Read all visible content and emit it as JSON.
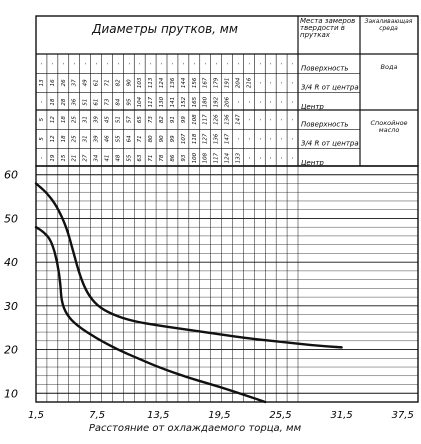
{
  "header": {
    "title": "Диаметры прутков, мм",
    "col_label_1": "Места замеров твердости в прутках",
    "col_label_2": "Закаливающая среда"
  },
  "row_groups": [
    {
      "medium": "Вода",
      "rows": [
        {
          "label": "Поверхность",
          "cells": [
            "-",
            "-",
            "-",
            "-",
            "-",
            "-",
            "-",
            "-",
            "-",
            "-",
            "-",
            "-",
            "-",
            "-",
            "-",
            "-",
            "-",
            "-",
            "-",
            "-",
            "-",
            "-",
            "-",
            "-"
          ]
        },
        {
          "label": "3/4 R от центра",
          "cells": [
            "13",
            "16",
            "26",
            "37",
            "49",
            "61",
            "71",
            "82",
            "90",
            "103",
            "113",
            "124",
            "136",
            "144",
            "156",
            "167",
            "179",
            "191",
            "204",
            "216",
            "-",
            "-",
            "-",
            "-"
          ]
        },
        {
          "label": "Центр",
          "cells": [
            "-",
            "18",
            "28",
            "36",
            "51",
            "61",
            "73",
            "84",
            "95",
            "104",
            "117",
            "130",
            "141",
            "152",
            "165",
            "180",
            "192",
            "206",
            "-",
            "-",
            "-",
            "-",
            "-",
            "-"
          ]
        }
      ]
    },
    {
      "medium": "Спокойное масло",
      "rows": [
        {
          "label": "Поверхность",
          "cells": [
            "5",
            "12",
            "18",
            "25",
            "31",
            "39",
            "45",
            "51",
            "57",
            "65",
            "73",
            "82",
            "91",
            "99",
            "108",
            "117",
            "126",
            "136",
            "147",
            "-",
            "-",
            "-",
            "-",
            "-"
          ]
        },
        {
          "label": "3/4 R от центра",
          "cells": [
            "5",
            "12",
            "18",
            "25",
            "31",
            "39",
            "46",
            "55",
            "64",
            "71",
            "80",
            "90",
            "99",
            "107",
            "118",
            "127",
            "136",
            "147",
            "-",
            "-",
            "-",
            "-",
            "-",
            "-"
          ]
        },
        {
          "label": "Центр",
          "cells": [
            "-",
            "19",
            "15",
            "21",
            "27",
            "34",
            "41",
            "48",
            "55",
            "63",
            "71",
            "78",
            "86",
            "93",
            "100",
            "108",
            "117",
            "124",
            "133",
            "-",
            "-",
            "-",
            "-",
            "-"
          ]
        }
      ]
    }
  ],
  "chart_data": {
    "type": "line",
    "title": "",
    "xlabel": "Расстояние от охлаждаемого торца, мм",
    "ylabel": "",
    "xlim": [
      1.5,
      39
    ],
    "ylim": [
      8,
      62
    ],
    "xticks": [
      1.5,
      7.5,
      13.5,
      19.5,
      25.5,
      31.5,
      37.5
    ],
    "xtick_labels": [
      "1,5",
      "7,5",
      "13,5",
      "19,5",
      "25,5",
      "31,5",
      "37,5"
    ],
    "yticks": [
      10,
      20,
      30,
      40,
      50,
      60
    ],
    "series": [
      {
        "values": [
          [
            1.5,
            58
          ],
          [
            2.5,
            56
          ],
          [
            3.5,
            53
          ],
          [
            4.5,
            48
          ],
          [
            5.2,
            42
          ],
          [
            5.8,
            37
          ],
          [
            6.5,
            33
          ],
          [
            7.5,
            30
          ],
          [
            9,
            28
          ],
          [
            11,
            26.5
          ],
          [
            13.5,
            25.5
          ],
          [
            16.5,
            24.5
          ],
          [
            19.5,
            23.5
          ],
          [
            22.5,
            22.5
          ],
          [
            25.5,
            21.8
          ],
          [
            28.5,
            21
          ],
          [
            31.5,
            20.5
          ]
        ]
      },
      {
        "values": [
          [
            1.5,
            48
          ],
          [
            2.2,
            47
          ],
          [
            3,
            45
          ],
          [
            3.6,
            40
          ],
          [
            3.9,
            35
          ],
          [
            4,
            31
          ],
          [
            4.5,
            28
          ],
          [
            5.5,
            25.5
          ],
          [
            7.5,
            22.5
          ],
          [
            9.5,
            20
          ],
          [
            11.5,
            18
          ],
          [
            13.5,
            16
          ],
          [
            16.5,
            13.5
          ],
          [
            19.5,
            11.5
          ],
          [
            22.5,
            9.2
          ],
          [
            24,
            8
          ]
        ]
      }
    ]
  }
}
